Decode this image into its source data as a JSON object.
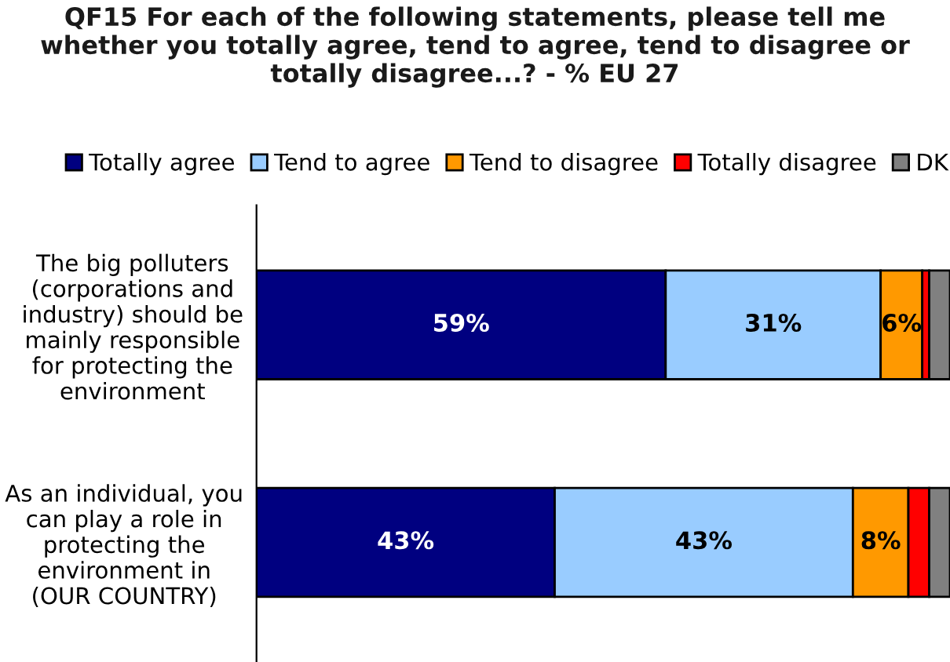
{
  "chart_data": {
    "type": "bar",
    "orientation": "horizontal",
    "stacked": true,
    "title": "QF15 For each of the following statements, please tell me\nwhether you totally agree, tend to agree, tend to disagree or\ntotally disagree...? - % EU 27",
    "categories": [
      "The big polluters\n(corporations and\nindustry) should be\nmainly responsible\nfor protecting the\nenvironment",
      "As an individual, you\ncan play a role in\nprotecting the\nenvironment in\n(OUR COUNTRY)"
    ],
    "series": [
      {
        "name": "Totally agree",
        "color": "#000080",
        "values": [
          59,
          43
        ],
        "value_labels": [
          "59%",
          "43%"
        ]
      },
      {
        "name": "Tend to agree",
        "color": "#99ccff",
        "values": [
          31,
          43
        ],
        "value_labels": [
          "31%",
          "43%"
        ]
      },
      {
        "name": "Tend to disagree",
        "color": "#ff9900",
        "values": [
          6,
          8
        ],
        "value_labels": [
          "6%",
          "8%"
        ]
      },
      {
        "name": "Totally disagree",
        "color": "#ff0000",
        "values": [
          1,
          3
        ],
        "value_labels": [
          null,
          null
        ]
      },
      {
        "name": "DK",
        "color": "#808080",
        "values": [
          3,
          3
        ],
        "value_labels": [
          null,
          null
        ]
      }
    ],
    "xlim": [
      0,
      100
    ],
    "tick_labels": "y",
    "legend": "top",
    "grid": false
  }
}
